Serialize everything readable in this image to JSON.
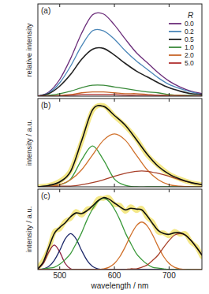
{
  "chart_data": [
    {
      "type": "line",
      "title": "(a)",
      "ylabel": "relative intensity",
      "legend_title": "R",
      "legend": "upper right",
      "tick_labels": false,
      "xlim": [
        460,
        760
      ],
      "ylim": [
        0,
        1.1
      ],
      "xticks": [
        500,
        600,
        700
      ],
      "x": [
        460,
        480,
        500,
        520,
        540,
        560,
        580,
        600,
        620,
        640,
        660,
        680,
        700,
        720,
        740,
        760
      ],
      "series": [
        {
          "name": "0.0",
          "color": "#6b2d7a",
          "values": [
            0,
            0.05,
            0.2,
            0.45,
            0.75,
            0.97,
            0.98,
            0.85,
            0.68,
            0.52,
            0.4,
            0.28,
            0.18,
            0.11,
            0.06,
            0.03
          ]
        },
        {
          "name": "0.2",
          "color": "#4a86b8",
          "values": [
            0,
            0.04,
            0.16,
            0.36,
            0.6,
            0.78,
            0.78,
            0.68,
            0.54,
            0.42,
            0.32,
            0.22,
            0.14,
            0.09,
            0.05,
            0.02
          ]
        },
        {
          "name": "0.5",
          "color": "#222222",
          "values": [
            0,
            0.03,
            0.12,
            0.26,
            0.44,
            0.56,
            0.57,
            0.49,
            0.39,
            0.3,
            0.23,
            0.16,
            0.1,
            0.06,
            0.03,
            0.02
          ]
        },
        {
          "name": "1.0",
          "color": "#3a8a3a",
          "values": [
            0,
            0.01,
            0.03,
            0.06,
            0.1,
            0.13,
            0.13,
            0.11,
            0.09,
            0.07,
            0.05,
            0.04,
            0.02,
            0.01,
            0.01,
            0
          ]
        },
        {
          "name": "2.0",
          "color": "#c8662a",
          "values": [
            0,
            0,
            0.01,
            0.02,
            0.04,
            0.05,
            0.05,
            0.04,
            0.03,
            0.03,
            0.02,
            0.01,
            0.01,
            0.01,
            0,
            0
          ]
        },
        {
          "name": "5.0",
          "color": "#b03030",
          "values": [
            0,
            0,
            0,
            0.01,
            0.02,
            0.02,
            0.02,
            0.02,
            0.01,
            0.01,
            0.01,
            0.01,
            0,
            0,
            0,
            0
          ]
        }
      ]
    },
    {
      "type": "line",
      "title": "(b)",
      "ylabel": "intensity / a.u.",
      "tick_labels": false,
      "xlim": [
        460,
        760
      ],
      "ylim": [
        0,
        1.25
      ],
      "xticks": [
        500,
        600,
        700
      ],
      "x": [
        460,
        480,
        500,
        520,
        540,
        560,
        580,
        600,
        620,
        640,
        660,
        680,
        700,
        720,
        740,
        760
      ],
      "series": [
        {
          "color": "#f0e060",
          "line_style": "band",
          "values": [
            0,
            0.02,
            0.08,
            0.23,
            0.64,
            1.08,
            1.15,
            1.0,
            0.86,
            0.68,
            0.45,
            0.3,
            0.18,
            0.11,
            0.06,
            0.03
          ]
        },
        {
          "color": "#3c9a3c",
          "values": [
            0,
            0.01,
            0.03,
            0.11,
            0.38,
            0.58,
            0.38,
            0.11,
            0.02,
            0,
            0,
            0,
            0,
            0,
            0,
            0
          ]
        },
        {
          "color": "#d0702a",
          "values": [
            0,
            0.01,
            0.03,
            0.1,
            0.24,
            0.45,
            0.66,
            0.75,
            0.66,
            0.45,
            0.24,
            0.1,
            0.03,
            0.01,
            0,
            0
          ]
        },
        {
          "color": "#a8402a",
          "values": [
            0,
            0,
            0.01,
            0.01,
            0.03,
            0.06,
            0.1,
            0.15,
            0.19,
            0.22,
            0.22,
            0.19,
            0.15,
            0.1,
            0.06,
            0.03
          ]
        },
        {
          "color": "#111111",
          "values": [
            0,
            0.02,
            0.07,
            0.22,
            0.65,
            1.09,
            1.14,
            1.01,
            0.87,
            0.67,
            0.46,
            0.29,
            0.18,
            0.11,
            0.06,
            0.03
          ]
        }
      ]
    },
    {
      "type": "line",
      "title": "(c)",
      "ylabel": "intensity / a.u.",
      "xlabel": "wavelength / nm",
      "tick_labels": "x",
      "xlim": [
        460,
        760
      ],
      "ylim": [
        0,
        1.05
      ],
      "xticks": [
        500,
        600,
        700
      ],
      "x": [
        460,
        470,
        480,
        490,
        500,
        510,
        520,
        530,
        540,
        550,
        560,
        570,
        580,
        590,
        600,
        610,
        620,
        630,
        640,
        650,
        660,
        670,
        680,
        690,
        700,
        710,
        720,
        730,
        740,
        750,
        760
      ],
      "series": [
        {
          "color": "#f0e060",
          "line_style": "band",
          "values": [
            0.02,
            0.12,
            0.27,
            0.49,
            0.53,
            0.63,
            0.67,
            0.76,
            0.71,
            0.79,
            0.81,
            0.92,
            0.93,
            0.94,
            0.85,
            0.84,
            0.76,
            0.82,
            0.77,
            0.8,
            0.68,
            0.62,
            0.49,
            0.48,
            0.44,
            0.5,
            0.46,
            0.47,
            0.36,
            0.3,
            0.17
          ]
        },
        {
          "color": "#8b1e3e",
          "values": [
            0.01,
            0.08,
            0.23,
            0.32,
            0.23,
            0.08,
            0.01,
            0,
            0,
            0,
            0,
            0,
            0,
            0,
            0,
            0,
            0,
            0,
            0,
            0,
            0,
            0,
            0,
            0,
            0,
            0,
            0,
            0,
            0,
            0,
            0
          ]
        },
        {
          "color": "#1f2a6b",
          "values": [
            0,
            0.01,
            0.04,
            0.12,
            0.25,
            0.4,
            0.47,
            0.4,
            0.25,
            0.12,
            0.04,
            0.01,
            0,
            0,
            0,
            0,
            0,
            0,
            0,
            0,
            0,
            0,
            0,
            0,
            0,
            0,
            0,
            0,
            0,
            0,
            0
          ]
        },
        {
          "color": "#3c9a3c",
          "values": [
            0,
            0.01,
            0.02,
            0.03,
            0.07,
            0.13,
            0.21,
            0.34,
            0.48,
            0.65,
            0.79,
            0.89,
            0.93,
            0.89,
            0.79,
            0.65,
            0.48,
            0.34,
            0.21,
            0.13,
            0.07,
            0.03,
            0.02,
            0.01,
            0,
            0,
            0,
            0,
            0,
            0,
            0
          ]
        },
        {
          "color": "#d0702a",
          "values": [
            0,
            0,
            0,
            0,
            0,
            0,
            0,
            0,
            0,
            0,
            0,
            0,
            0.01,
            0.03,
            0.08,
            0.17,
            0.3,
            0.45,
            0.57,
            0.62,
            0.57,
            0.45,
            0.3,
            0.17,
            0.08,
            0.03,
            0.01,
            0,
            0,
            0,
            0
          ]
        },
        {
          "color": "#a8402a",
          "values": [
            0,
            0,
            0,
            0,
            0,
            0,
            0,
            0,
            0,
            0,
            0,
            0,
            0,
            0,
            0,
            0,
            0,
            0.01,
            0.01,
            0.03,
            0.06,
            0.12,
            0.19,
            0.29,
            0.38,
            0.45,
            0.47,
            0.45,
            0.38,
            0.29,
            0.19
          ]
        },
        {
          "color": "#111111",
          "values": [
            0.01,
            0.1,
            0.29,
            0.47,
            0.55,
            0.61,
            0.69,
            0.74,
            0.73,
            0.77,
            0.83,
            0.9,
            0.94,
            0.92,
            0.87,
            0.82,
            0.78,
            0.8,
            0.79,
            0.78,
            0.7,
            0.6,
            0.51,
            0.47,
            0.46,
            0.48,
            0.48,
            0.45,
            0.38,
            0.29,
            0.19
          ]
        }
      ]
    }
  ]
}
